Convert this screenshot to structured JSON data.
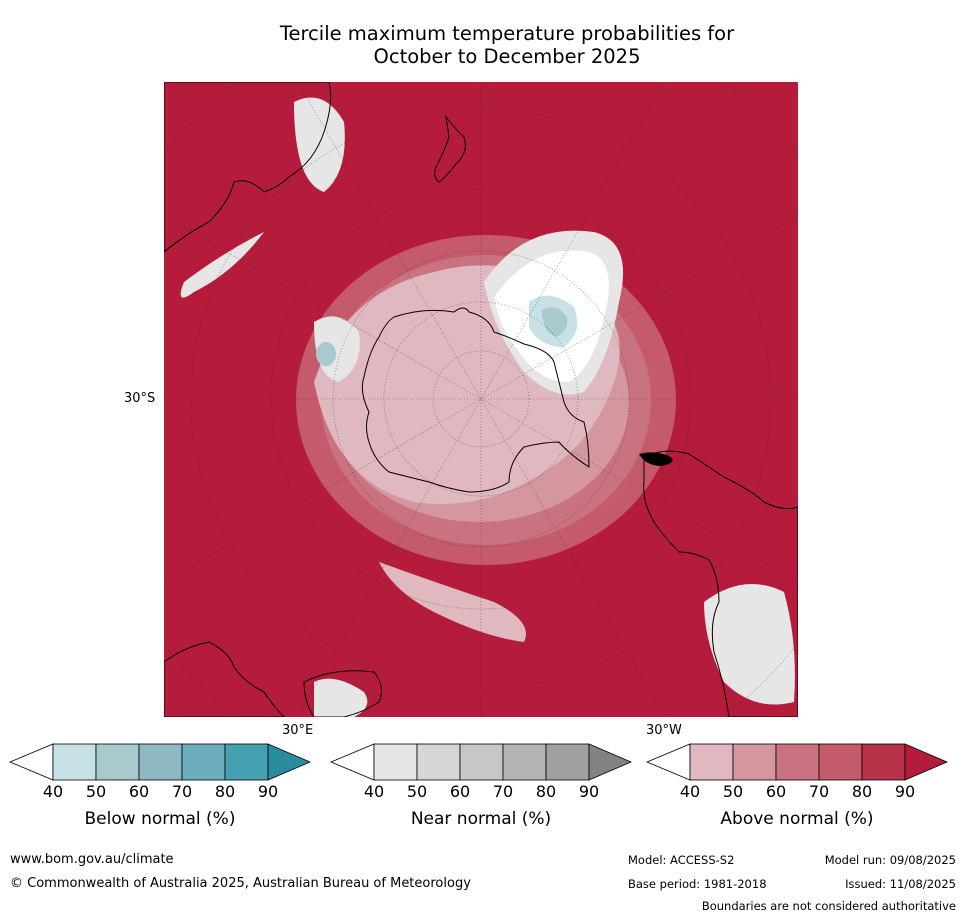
{
  "title": {
    "line1": "Tercile maximum temperature probabilities for",
    "line2": "October to December 2025"
  },
  "map": {
    "projection": "south-polar-stereographic",
    "latitude_label": "30°S",
    "longitude_labels": [
      "30°E",
      "30°W"
    ],
    "dominant_category": "Above normal",
    "dominant_color": "#b51c3c",
    "land_outline_color": "#000000"
  },
  "colorbars": [
    {
      "label": "Below normal (%)",
      "ticks": [
        "40",
        "50",
        "60",
        "70",
        "80",
        "90"
      ],
      "colors": [
        "#ffffff",
        "#c8e1e7",
        "#a8c9ce",
        "#8eb9c1",
        "#6daebc",
        "#45a1b2",
        "#2b8c9d"
      ]
    },
    {
      "label": "Near normal (%)",
      "ticks": [
        "40",
        "50",
        "60",
        "70",
        "80",
        "90"
      ],
      "colors": [
        "#ffffff",
        "#e6e6e6",
        "#d6d6d6",
        "#c7c7c7",
        "#b4b4b4",
        "#a0a0a0",
        "#828282"
      ]
    },
    {
      "label": "Above normal (%)",
      "ticks": [
        "40",
        "50",
        "60",
        "70",
        "80",
        "90"
      ],
      "colors": [
        "#ffffff",
        "#e0b8bf",
        "#d5979f",
        "#ca7380",
        "#c45a6a",
        "#b83249",
        "#b51c3c"
      ]
    }
  ],
  "footer": {
    "website": "www.bom.gov.au/climate",
    "copyright": "© Commonwealth of Australia 2025, Australian Bureau of Meteorology",
    "model": "Model: ACCESS-S2",
    "model_run": "Model run: 09/08/2025",
    "base_period": "Base period: 1981-2018",
    "issued": "Issued: 11/08/2025",
    "disclaimer": "Boundaries are not considered authoritative"
  }
}
